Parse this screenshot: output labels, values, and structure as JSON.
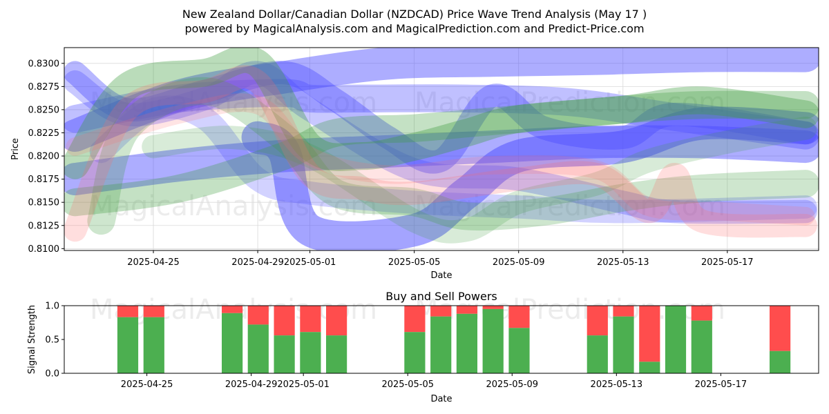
{
  "header": {
    "title_line1": "New Zealand Dollar/Canadian Dollar (NZDCAD) Price Wave Trend Analysis (May 17 )",
    "title_line2": "powered by MagicalAnalysis.com and MagicalPrediction.com and Predict-Price.com"
  },
  "watermarks": [
    "MagicalAnalysis.com",
    "MagicalPrediction.com"
  ],
  "chart_data": [
    {
      "type": "area",
      "title": "",
      "xlabel": "Date",
      "ylabel": "Price",
      "xlim": [
        "2025-04-21T14:00",
        "2025-05-20T12:00"
      ],
      "ylim": [
        0.8098,
        0.8317
      ],
      "x_ticks": [
        "2025-04-25",
        "2025-04-29",
        "2025-05-01",
        "2025-05-05",
        "2025-05-09",
        "2025-05-13",
        "2025-05-17"
      ],
      "y_ticks": [
        0.81,
        0.8125,
        0.815,
        0.8175,
        0.82,
        0.8225,
        0.825,
        0.8275,
        0.83
      ],
      "grid": true,
      "colors": {
        "blue": "#4a4aff",
        "green": "#3a9a3a",
        "red": "#ff6b6b"
      },
      "series": [
        {
          "color": "blue",
          "opacity": 0.45,
          "width": 0.0035,
          "points": [
            [
              "2025-04-22",
              0.8222
            ],
            [
              "2025-04-26",
              0.8265
            ],
            [
              "2025-04-30",
              0.8285
            ],
            [
              "2025-05-04",
              0.83
            ],
            [
              "2025-05-08",
              0.8303
            ],
            [
              "2025-05-12",
              0.8305
            ],
            [
              "2025-05-16",
              0.8308
            ],
            [
              "2025-05-20",
              0.8308
            ]
          ]
        },
        {
          "color": "blue",
          "opacity": 0.45,
          "width": 0.0035,
          "points": [
            [
              "2025-04-22",
              0.8175
            ],
            [
              "2025-04-26",
              0.819
            ],
            [
              "2025-04-30",
              0.82
            ],
            [
              "2025-05-04",
              0.8205
            ],
            [
              "2025-05-08",
              0.821
            ],
            [
              "2025-05-12",
              0.8215
            ],
            [
              "2025-05-16",
              0.8215
            ],
            [
              "2025-05-20",
              0.821
            ]
          ]
        },
        {
          "color": "blue",
          "opacity": 0.35,
          "width": 0.003,
          "points": [
            [
              "2025-04-22",
              0.824
            ],
            [
              "2025-04-26",
              0.8262
            ],
            [
              "2025-04-30",
              0.8268
            ],
            [
              "2025-05-01",
              0.8262
            ],
            [
              "2025-05-03",
              0.8262
            ],
            [
              "2025-05-07",
              0.8262
            ],
            [
              "2025-05-11",
              0.8258
            ],
            [
              "2025-05-15",
              0.8242
            ],
            [
              "2025-05-20",
              0.8222
            ]
          ]
        },
        {
          "color": "blue",
          "opacity": 0.5,
          "width": 0.0035,
          "points": [
            [
              "2025-04-29",
              0.822
            ],
            [
              "2025-04-30",
              0.8205
            ],
            [
              "2025-05-01",
              0.812
            ],
            [
              "2025-05-05",
              0.812
            ],
            [
              "2025-05-07",
              0.816
            ],
            [
              "2025-05-09",
              0.82
            ],
            [
              "2025-05-13",
              0.821
            ],
            [
              "2025-05-16",
              0.8235
            ],
            [
              "2025-05-20",
              0.823
            ]
          ]
        },
        {
          "color": "blue",
          "opacity": 0.4,
          "width": 0.0025,
          "points": [
            [
              "2025-04-22",
              0.829
            ],
            [
              "2025-04-24",
              0.825
            ],
            [
              "2025-04-27",
              0.827
            ],
            [
              "2025-04-30",
              0.829
            ],
            [
              "2025-05-02",
              0.826
            ],
            [
              "2025-05-04",
              0.822
            ],
            [
              "2025-05-06",
              0.8195
            ],
            [
              "2025-05-08",
              0.8265
            ],
            [
              "2025-05-10",
              0.823
            ],
            [
              "2025-05-13",
              0.822
            ],
            [
              "2025-05-15",
              0.8245
            ],
            [
              "2025-05-20",
              0.8225
            ]
          ]
        },
        {
          "color": "blue",
          "opacity": 0.3,
          "width": 0.0025,
          "points": [
            [
              "2025-04-22",
              0.828
            ],
            [
              "2025-04-24",
              0.8245
            ],
            [
              "2025-04-27",
              0.8262
            ],
            [
              "2025-04-29",
              0.829
            ],
            [
              "2025-05-01",
              0.825
            ],
            [
              "2025-05-05",
              0.8185
            ],
            [
              "2025-05-09",
              0.8175
            ],
            [
              "2025-05-13",
              0.815
            ],
            [
              "2025-05-15",
              0.814
            ],
            [
              "2025-05-20",
              0.814
            ]
          ]
        },
        {
          "color": "blue",
          "opacity": 0.25,
          "width": 0.0025,
          "points": [
            [
              "2025-04-23",
              0.8205
            ],
            [
              "2025-04-25",
              0.825
            ],
            [
              "2025-04-27",
              0.824
            ],
            [
              "2025-04-29",
              0.8175
            ],
            [
              "2025-05-01",
              0.816
            ],
            [
              "2025-05-05",
              0.815
            ],
            [
              "2025-05-09",
              0.8145
            ],
            [
              "2025-05-13",
              0.814
            ],
            [
              "2025-05-20",
              0.8145
            ]
          ]
        },
        {
          "color": "green",
          "opacity": 0.35,
          "width": 0.003,
          "points": [
            [
              "2025-04-22",
              0.819
            ],
            [
              "2025-04-24",
              0.8275
            ],
            [
              "2025-04-27",
              0.829
            ],
            [
              "2025-04-29",
              0.83
            ],
            [
              "2025-05-01",
              0.821
            ],
            [
              "2025-05-03",
              0.82
            ],
            [
              "2025-05-05",
              0.821
            ],
            [
              "2025-05-07",
              0.8225
            ],
            [
              "2025-05-09",
              0.824
            ],
            [
              "2025-05-13",
              0.825
            ],
            [
              "2025-05-16",
              0.826
            ],
            [
              "2025-05-20",
              0.8245
            ]
          ]
        },
        {
          "color": "green",
          "opacity": 0.3,
          "width": 0.003,
          "points": [
            [
              "2025-04-22",
              0.815
            ],
            [
              "2025-04-26",
              0.8165
            ],
            [
              "2025-04-30",
              0.82
            ],
            [
              "2025-05-02",
              0.8225
            ],
            [
              "2025-05-05",
              0.823
            ],
            [
              "2025-05-07",
              0.8235
            ],
            [
              "2025-05-09",
              0.824
            ],
            [
              "2025-05-13",
              0.825
            ],
            [
              "2025-05-16",
              0.8255
            ],
            [
              "2025-05-20",
              0.8255
            ]
          ]
        },
        {
          "color": "green",
          "opacity": 0.25,
          "width": 0.003,
          "points": [
            [
              "2025-04-23",
              0.813
            ],
            [
              "2025-04-24",
              0.823
            ],
            [
              "2025-04-27",
              0.827
            ],
            [
              "2025-04-30",
              0.822
            ],
            [
              "2025-05-02",
              0.816
            ],
            [
              "2025-05-05",
              0.815
            ],
            [
              "2025-05-07",
              0.8135
            ],
            [
              "2025-05-10",
              0.814
            ],
            [
              "2025-05-13",
              0.8155
            ],
            [
              "2025-05-16",
              0.8165
            ],
            [
              "2025-05-20",
              0.817
            ]
          ]
        },
        {
          "color": "green",
          "opacity": 0.2,
          "width": 0.0025,
          "points": [
            [
              "2025-04-25",
              0.821
            ],
            [
              "2025-04-28",
              0.822
            ],
            [
              "2025-05-01",
              0.82
            ],
            [
              "2025-05-05",
              0.813
            ],
            [
              "2025-05-07",
              0.812
            ],
            [
              "2025-05-09",
              0.815
            ],
            [
              "2025-05-12",
              0.817
            ],
            [
              "2025-05-14",
              0.8195
            ],
            [
              "2025-05-17",
              0.8215
            ],
            [
              "2025-05-20",
              0.823
            ]
          ]
        },
        {
          "color": "red",
          "opacity": 0.22,
          "width": 0.0025,
          "points": [
            [
              "2025-04-22",
              0.812
            ],
            [
              "2025-04-24",
              0.825
            ],
            [
              "2025-04-27",
              0.827
            ],
            [
              "2025-04-29",
              0.828
            ],
            [
              "2025-05-01",
              0.818
            ],
            [
              "2025-05-03",
              0.8165
            ],
            [
              "2025-05-05",
              0.816
            ],
            [
              "2025-05-09",
              0.8175
            ],
            [
              "2025-05-12",
              0.818
            ],
            [
              "2025-05-14",
              0.814
            ],
            [
              "2025-05-15",
              0.818
            ],
            [
              "2025-05-16",
              0.813
            ],
            [
              "2025-05-20",
              0.8125
            ]
          ]
        },
        {
          "color": "red",
          "opacity": 0.18,
          "width": 0.002,
          "points": [
            [
              "2025-04-22",
              0.821
            ],
            [
              "2025-04-26",
              0.8245
            ],
            [
              "2025-04-29",
              0.8255
            ],
            [
              "2025-05-01",
              0.82
            ],
            [
              "2025-05-04",
              0.818
            ],
            [
              "2025-05-08",
              0.819
            ],
            [
              "2025-05-12",
              0.8185
            ],
            [
              "2025-05-14",
              0.8145
            ],
            [
              "2025-05-17",
              0.814
            ],
            [
              "2025-05-20",
              0.8135
            ]
          ]
        }
      ]
    },
    {
      "type": "bar",
      "title": "Buy and Sell Powers",
      "xlabel": "Date",
      "ylabel": "Signal Strength",
      "ylim": [
        0,
        1
      ],
      "y_ticks": [
        0.0,
        0.5,
        1.0
      ],
      "x_ticks": [
        "2025-04-25",
        "2025-04-29",
        "2025-05-01",
        "2025-05-05",
        "2025-05-09",
        "2025-05-13",
        "2025-05-17"
      ],
      "colors": {
        "buy": "#4caf50",
        "sell": "#ff4d4d"
      },
      "dates": [
        "2025-04-24",
        "2025-04-25",
        "2025-04-28",
        "2025-04-29",
        "2025-04-30",
        "2025-05-01",
        "2025-05-02",
        "2025-05-05",
        "2025-05-06",
        "2025-05-07",
        "2025-05-08",
        "2025-05-09",
        "2025-05-12",
        "2025-05-13",
        "2025-05-14",
        "2025-05-15",
        "2025-05-16",
        "2025-05-19"
      ],
      "buy": [
        0.83,
        0.83,
        0.89,
        0.72,
        0.56,
        0.61,
        0.56,
        0.61,
        0.84,
        0.88,
        0.95,
        0.67,
        0.56,
        0.84,
        0.17,
        1.0,
        0.78,
        0.33
      ]
    }
  ]
}
